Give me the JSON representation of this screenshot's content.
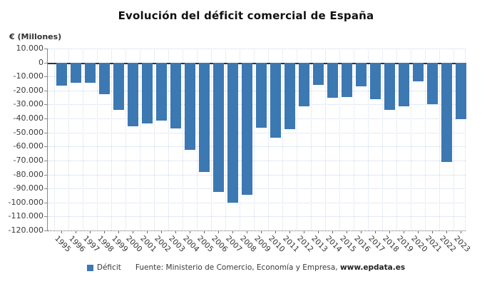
{
  "title": "Evolución del déficit comercial de España",
  "y_axis_unit_label": "€ (Millones)",
  "legend": {
    "deficit_label": "Déficit"
  },
  "source": {
    "prefix": "Fuente: Ministerio de Comercio, Economía y Empresa, ",
    "site": "www.epdata.es"
  },
  "colors": {
    "bar": "#3c78b2",
    "grid": "#c9d6e8",
    "zero_line": "#333333",
    "axis": "#666666",
    "text": "#333333"
  },
  "chart_data": {
    "type": "bar",
    "title": "Evolución del déficit comercial de España",
    "ylabel": "€ (Millones)",
    "xlabel": "",
    "categories": [
      "1995",
      "1996",
      "1997",
      "1998",
      "1999",
      "2000",
      "2001",
      "2002",
      "2003",
      "2004",
      "2005",
      "2006",
      "2007",
      "2008",
      "2009",
      "2010",
      "2011",
      "2012",
      "2013",
      "2014",
      "2015",
      "2016",
      "2017",
      "2018",
      "2019",
      "2020",
      "2021",
      "2022",
      "2023"
    ],
    "series": [
      {
        "name": "Déficit",
        "color": "#3c78b2",
        "values": [
          -16500,
          -14500,
          -14500,
          -22500,
          -34000,
          -45500,
          -43500,
          -41500,
          -47000,
          -62500,
          -78000,
          -92500,
          -100000,
          -94500,
          -46500,
          -53500,
          -47500,
          -31500,
          -16000,
          -25000,
          -24500,
          -17000,
          -26000,
          -34000,
          -31500,
          -13500,
          -30000,
          -71000,
          -40500
        ]
      }
    ],
    "ylim": [
      -120000,
      10000
    ],
    "ytick_step": 10000,
    "ytick_values": [
      10000,
      0,
      -10000,
      -20000,
      -30000,
      -40000,
      -50000,
      -60000,
      -70000,
      -80000,
      -90000,
      -100000,
      -110000,
      -120000
    ],
    "ytick_labels": [
      "10.000",
      "0",
      "-10.000",
      "-20.000",
      "-30.000",
      "-40.000",
      "-50.000",
      "-60.000",
      "-70.000",
      "-80.000",
      "-90.000",
      "-100.000",
      "-110.000",
      "-120.000"
    ],
    "grid": true,
    "legend_position": "bottom"
  }
}
